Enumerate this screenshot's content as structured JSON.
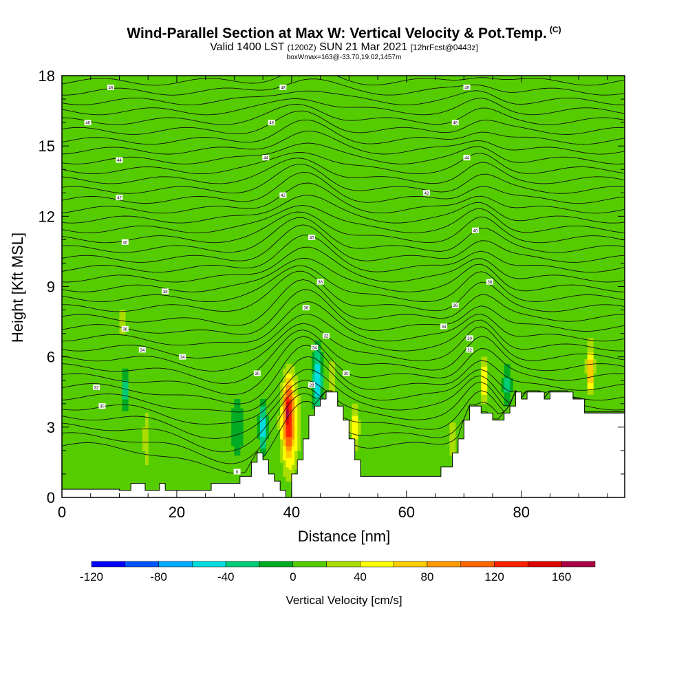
{
  "title": "Wind-Parallel Section at Max W: Vertical Velocity & Pot.Temp.",
  "copyright": "(C)",
  "subtitle": {
    "valid": "Valid 1400 LST",
    "utc": "(1200Z)",
    "date": "SUN 21 Mar 2021",
    "forecast": "[12hrFcst@0443z]"
  },
  "boxline": "boxWmax=163@-33.70,19.02,1457m",
  "chart_data": {
    "type": "heatmap",
    "xlabel": "Distance [nm]",
    "ylabel": "Height [Kft MSL]",
    "xlim": [
      0,
      98
    ],
    "ylim": [
      0,
      18
    ],
    "x_ticks": [
      0,
      20,
      40,
      60,
      80
    ],
    "y_ticks": [
      0,
      3,
      6,
      9,
      12,
      15,
      18
    ],
    "background_value": 0,
    "colorbar": {
      "label": "Vertical Velocity [cm/s]",
      "ticks": [
        -120,
        -80,
        -40,
        0,
        40,
        80,
        120,
        160
      ],
      "levels": [
        -120,
        -100,
        -80,
        -60,
        -40,
        -20,
        0,
        20,
        40,
        60,
        80,
        100,
        120,
        140,
        160,
        180
      ],
      "colors": [
        "#0000ff",
        "#0055ff",
        "#00aaff",
        "#00dddd",
        "#00cc77",
        "#00aa22",
        "#55cc00",
        "#aadd00",
        "#ffff00",
        "#ffcc00",
        "#ff9900",
        "#ff6600",
        "#ff2200",
        "#dd0000",
        "#aa0044"
      ]
    },
    "terrain": [
      [
        0,
        0.35
      ],
      [
        10,
        0.35
      ],
      [
        10,
        0.3
      ],
      [
        12,
        0.3
      ],
      [
        12,
        0.6
      ],
      [
        14.5,
        0.6
      ],
      [
        14.5,
        0.3
      ],
      [
        17,
        0.3
      ],
      [
        17,
        0.6
      ],
      [
        18,
        0.6
      ],
      [
        18,
        0.3
      ],
      [
        26,
        0.3
      ],
      [
        26,
        0.6
      ],
      [
        31,
        0.6
      ],
      [
        31,
        0.9
      ],
      [
        33,
        0.9
      ],
      [
        33,
        1.5
      ],
      [
        34,
        1.5
      ],
      [
        34,
        1.9
      ],
      [
        35,
        1.9
      ],
      [
        35,
        1.6
      ],
      [
        36,
        1.6
      ],
      [
        36,
        1.0
      ],
      [
        37,
        1.0
      ],
      [
        37,
        0.7
      ],
      [
        38,
        0.7
      ],
      [
        38,
        0.3
      ],
      [
        39,
        0.3
      ],
      [
        39,
        0.0
      ],
      [
        40,
        0.0
      ],
      [
        40,
        1.0
      ],
      [
        41,
        1.0
      ],
      [
        41,
        1.6
      ],
      [
        42,
        1.6
      ],
      [
        42,
        2.5
      ],
      [
        43,
        2.5
      ],
      [
        43,
        3.5
      ],
      [
        44,
        3.5
      ],
      [
        44,
        3.9
      ],
      [
        45,
        3.9
      ],
      [
        45,
        4.2
      ],
      [
        46,
        4.2
      ],
      [
        46,
        4.5
      ],
      [
        48,
        4.5
      ],
      [
        48,
        3.9
      ],
      [
        49,
        3.9
      ],
      [
        49,
        3.3
      ],
      [
        50,
        3.3
      ],
      [
        50,
        2.5
      ],
      [
        51,
        2.5
      ],
      [
        51,
        1.6
      ],
      [
        52,
        1.6
      ],
      [
        52,
        0.9
      ],
      [
        60,
        0.9
      ],
      [
        60,
        0.9
      ],
      [
        66,
        0.9
      ],
      [
        66,
        1.3
      ],
      [
        68,
        1.3
      ],
      [
        68,
        1.9
      ],
      [
        69,
        1.9
      ],
      [
        69,
        2.5
      ],
      [
        70,
        2.5
      ],
      [
        70,
        3.3
      ],
      [
        71,
        3.3
      ],
      [
        71,
        3.9
      ],
      [
        73,
        3.9
      ],
      [
        73,
        3.6
      ],
      [
        75,
        3.6
      ],
      [
        75,
        3.3
      ],
      [
        77,
        3.3
      ],
      [
        77,
        3.6
      ],
      [
        78,
        3.6
      ],
      [
        78,
        3.9
      ],
      [
        79,
        3.9
      ],
      [
        79,
        4.5
      ],
      [
        80,
        4.5
      ],
      [
        80,
        4.2
      ],
      [
        81,
        4.2
      ],
      [
        81,
        4.5
      ],
      [
        84,
        4.5
      ],
      [
        84,
        4.2
      ],
      [
        85,
        4.2
      ],
      [
        85,
        4.5
      ],
      [
        89,
        4.5
      ],
      [
        89,
        4.2
      ],
      [
        91,
        4.2
      ],
      [
        91,
        3.6
      ],
      [
        98,
        3.6
      ]
    ],
    "velocity_features": [
      {
        "x": 39.5,
        "y": 3.4,
        "half_width": 1.4,
        "half_height": 2.3,
        "value": 140
      },
      {
        "x": 39.4,
        "y": 3.6,
        "half_width": 0.7,
        "half_height": 1.5,
        "value": 170
      },
      {
        "x": 39.6,
        "y": 3.2,
        "half_width": 2.2,
        "half_height": 3.0,
        "value": 70
      },
      {
        "x": 44.5,
        "y": 5.0,
        "half_width": 1.0,
        "half_height": 1.8,
        "value": -50
      },
      {
        "x": 35.0,
        "y": 3.0,
        "half_width": 0.8,
        "half_height": 1.3,
        "value": -50
      },
      {
        "x": 92.0,
        "y": 5.4,
        "half_width": 0.6,
        "half_height": 1.3,
        "value": 90
      },
      {
        "x": 92.0,
        "y": 5.6,
        "half_width": 1.1,
        "half_height": 1.8,
        "value": 40
      },
      {
        "x": 73.5,
        "y": 5.0,
        "half_width": 0.6,
        "half_height": 1.4,
        "value": 60
      },
      {
        "x": 51.0,
        "y": 3.0,
        "half_width": 1.0,
        "half_height": 1.3,
        "value": 50
      },
      {
        "x": 11.0,
        "y": 4.6,
        "half_width": 0.6,
        "half_height": 1.0,
        "value": -30
      },
      {
        "x": 14.6,
        "y": 2.5,
        "half_width": 0.6,
        "half_height": 1.8,
        "value": 35
      },
      {
        "x": 47.0,
        "y": 5.0,
        "half_width": 1.2,
        "half_height": 1.5,
        "value": 30
      },
      {
        "x": 77.5,
        "y": 4.8,
        "half_width": 0.8,
        "half_height": 1.0,
        "value": -25
      },
      {
        "x": 30.5,
        "y": 3.0,
        "half_width": 1.0,
        "half_height": 1.2,
        "value": -20
      },
      {
        "x": 10.5,
        "y": 7.5,
        "half_width": 0.6,
        "half_height": 0.9,
        "value": 40
      },
      {
        "x": 68.0,
        "y": 2.5,
        "half_width": 0.8,
        "half_height": 1.2,
        "value": 35
      },
      {
        "x": 20.0,
        "y": 10.0,
        "half_width": 2.0,
        "half_height": 5.0,
        "value": 20
      },
      {
        "x": 28.0,
        "y": 14.0,
        "half_width": 2.0,
        "half_height": 4.0,
        "value": 15
      },
      {
        "x": 60.0,
        "y": 12.0,
        "half_width": 2.0,
        "half_height": 5.0,
        "value": 20
      },
      {
        "x": 80.0,
        "y": 13.0,
        "half_width": 2.0,
        "half_height": 5.0,
        "value": 15
      }
    ],
    "isentrope_labels": [
      {
        "x": 8.5,
        "y": 17.5,
        "text": "48"
      },
      {
        "x": 38.5,
        "y": 17.5,
        "text": "48"
      },
      {
        "x": 70.5,
        "y": 17.5,
        "text": "48"
      },
      {
        "x": 4.5,
        "y": 16.0,
        "text": "46"
      },
      {
        "x": 36.5,
        "y": 16.0,
        "text": "46"
      },
      {
        "x": 68.5,
        "y": 16.0,
        "text": "46"
      },
      {
        "x": 10.0,
        "y": 14.4,
        "text": "44"
      },
      {
        "x": 35.5,
        "y": 14.5,
        "text": "44"
      },
      {
        "x": 70.5,
        "y": 14.5,
        "text": "44"
      },
      {
        "x": 10.0,
        "y": 12.8,
        "text": "42"
      },
      {
        "x": 38.5,
        "y": 12.9,
        "text": "42"
      },
      {
        "x": 63.5,
        "y": 13.0,
        "text": "42"
      },
      {
        "x": 11.0,
        "y": 10.9,
        "text": "40"
      },
      {
        "x": 43.5,
        "y": 11.1,
        "text": "40"
      },
      {
        "x": 72.0,
        "y": 11.4,
        "text": "40"
      },
      {
        "x": 18.0,
        "y": 8.8,
        "text": "38"
      },
      {
        "x": 45.0,
        "y": 9.2,
        "text": "38"
      },
      {
        "x": 74.5,
        "y": 9.2,
        "text": "38"
      },
      {
        "x": 11.0,
        "y": 7.2,
        "text": "36"
      },
      {
        "x": 42.5,
        "y": 8.1,
        "text": "36"
      },
      {
        "x": 68.5,
        "y": 8.2,
        "text": "36"
      },
      {
        "x": 14.0,
        "y": 6.3,
        "text": "34"
      },
      {
        "x": 21.0,
        "y": 6.0,
        "text": "34"
      },
      {
        "x": 44.0,
        "y": 6.4,
        "text": "34"
      },
      {
        "x": 66.5,
        "y": 7.3,
        "text": "34"
      },
      {
        "x": 6.0,
        "y": 4.7,
        "text": "32"
      },
      {
        "x": 46.0,
        "y": 6.9,
        "text": "32"
      },
      {
        "x": 71.0,
        "y": 6.3,
        "text": "32"
      },
      {
        "x": 7.0,
        "y": 3.9,
        "text": "30"
      },
      {
        "x": 34.0,
        "y": 5.3,
        "text": "30"
      },
      {
        "x": 49.5,
        "y": 5.3,
        "text": "30"
      },
      {
        "x": 71.0,
        "y": 6.8,
        "text": "30"
      },
      {
        "x": 43.5,
        "y": 4.8,
        "text": "28"
      },
      {
        "x": 30.5,
        "y": 1.1,
        "text": "8"
      }
    ]
  }
}
